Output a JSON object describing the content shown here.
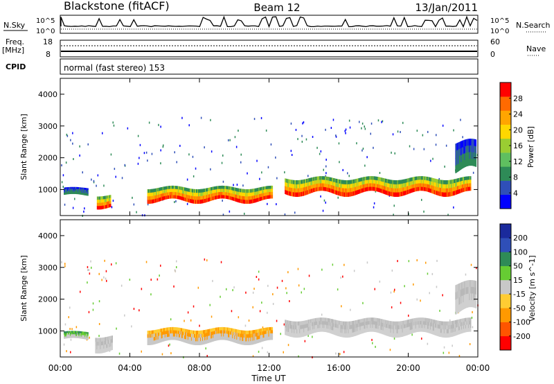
{
  "header": {
    "station": "Blackstone (fitACF)",
    "beam": "Beam 12",
    "date": "13/Jan/2011"
  },
  "status_panels": {
    "nsky_label": "N.Sky",
    "nsky_ticks": [
      "10^5",
      "10^0"
    ],
    "nsearch_label": "N.Search",
    "freq_label": "Freq.",
    "freq_unit": "[MHz]",
    "freq_ticks": [
      "18",
      "8"
    ],
    "nave_label": "Nave",
    "nave_ticks": [
      "60",
      "0"
    ],
    "cpid_label": "CPID",
    "cpid_value": "normal (fast stereo) 153"
  },
  "chart_data": [
    {
      "type": "heatmap",
      "name": "power-panel",
      "ylabel": "Slant Range [km]",
      "ylim": [
        180,
        4500
      ],
      "yticks": [
        "4000",
        "3000",
        "2000",
        "1000"
      ],
      "xlim": [
        0,
        24
      ],
      "colorbar_label": "Power [dB]",
      "colorbar_ticks": [
        "28",
        "24",
        "20",
        "16",
        "12",
        "8",
        "4"
      ],
      "colorbar_colors": [
        "#0000ff",
        "#2f4fb8",
        "#2e8b57",
        "#5fbf60",
        "#9acd32",
        "#ffd700",
        "#ffa500",
        "#ff6a00",
        "#ff0000"
      ],
      "scatter_bands": [
        {
          "t0": 0.2,
          "t1": 1.6,
          "r0": 780,
          "r1": 1080,
          "level": "low"
        },
        {
          "t0": 2.1,
          "t1": 2.9,
          "r0": 380,
          "r1": 880,
          "level": "high"
        },
        {
          "t0": 5.0,
          "t1": 12.2,
          "r0": 560,
          "r1": 1120,
          "level": "high"
        },
        {
          "t0": 12.9,
          "t1": 23.6,
          "r0": 780,
          "r1": 1420,
          "level": "high"
        },
        {
          "t0": 22.7,
          "t1": 23.9,
          "r0": 1400,
          "r1": 2600,
          "level": "low"
        }
      ]
    },
    {
      "type": "heatmap",
      "name": "velocity-panel",
      "ylabel": "Slant Range [km]",
      "ylim": [
        180,
        4500
      ],
      "yticks": [
        "4000",
        "3000",
        "2000",
        "1000"
      ],
      "xlim": [
        0,
        24
      ],
      "xticks": [
        "00:00",
        "04:00",
        "08:00",
        "12:00",
        "16:00",
        "20:00",
        "00:00"
      ],
      "xlabel": "Time UT",
      "colorbar_label": "Velocity [m s^-1]",
      "colorbar_ticks": [
        "200",
        "100",
        "50",
        "15",
        "-15",
        "-50",
        "-100",
        "-200"
      ],
      "colorbar_colors": [
        "#1a2a9c",
        "#2f4fb8",
        "#2e8b57",
        "#66cc33",
        "#c8c8c8",
        "#ffcc33",
        "#ff9900",
        "#ff5500",
        "#ff0000"
      ],
      "scatter_bands": [
        {
          "t0": 0.2,
          "t1": 1.6,
          "r0": 700,
          "r1": 1000,
          "level": "green"
        },
        {
          "t0": 2.0,
          "t1": 3.0,
          "r0": 300,
          "r1": 900,
          "level": "gray"
        },
        {
          "t0": 5.0,
          "t1": 12.2,
          "r0": 560,
          "r1": 1120,
          "level": "orange"
        },
        {
          "t0": 12.9,
          "t1": 23.6,
          "r0": 800,
          "r1": 1420,
          "level": "gray"
        },
        {
          "t0": 22.7,
          "t1": 23.9,
          "r0": 1400,
          "r1": 2600,
          "level": "gray"
        }
      ]
    }
  ]
}
